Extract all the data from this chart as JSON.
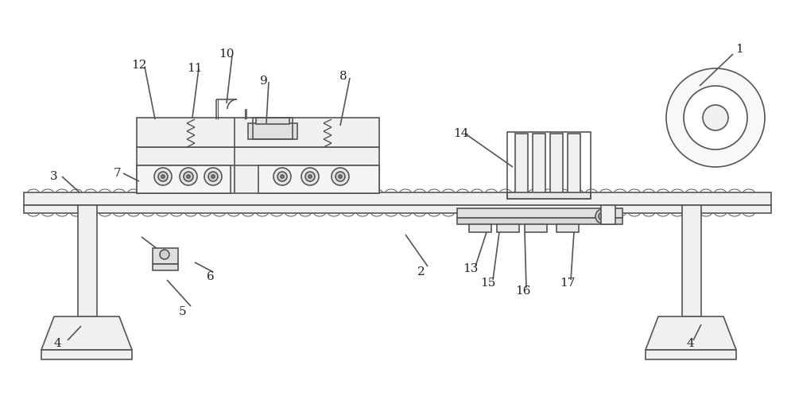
{
  "bg_color": "#ffffff",
  "line_color": "#555555",
  "line_width": 1.2,
  "heavy_line": 2.0,
  "label_color": "#222222",
  "label_fontsize": 11
}
